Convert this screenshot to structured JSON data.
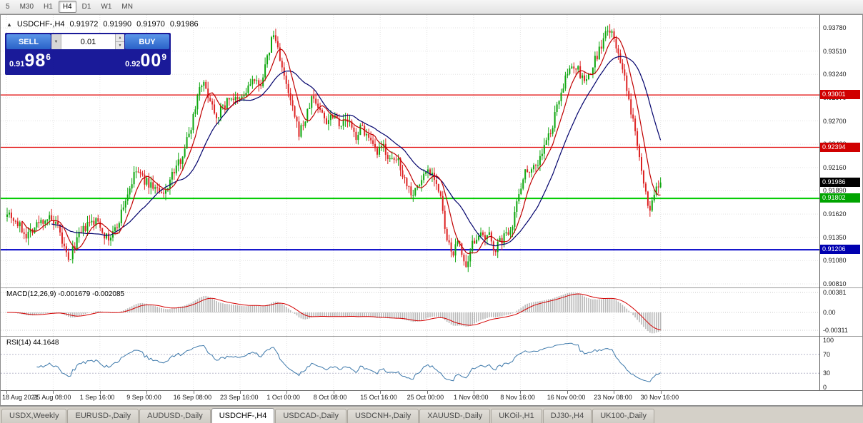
{
  "toolbar": {
    "periods": [
      "5",
      "M30",
      "H1",
      "H4",
      "D1",
      "W1",
      "MN"
    ],
    "active_period": "H4"
  },
  "chart": {
    "collapse_icon": "▲",
    "title": "USDCHF-,H4",
    "open": "0.91972",
    "high": "0.91990",
    "low": "0.91970",
    "close": "0.91986"
  },
  "trade_panel": {
    "sell_label": "SELL",
    "buy_label": "BUY",
    "lot_size": "0.01",
    "dropdown_icon": "▼",
    "spin_up_icon": "▲",
    "spin_down_icon": "▼",
    "sell_price": {
      "prefix": "0.91",
      "big": "98",
      "sup": "6"
    },
    "buy_price": {
      "prefix": "0.92",
      "big": "00",
      "sup": "9"
    }
  },
  "price_axis": {
    "labels": [
      "0.93780",
      "0.93510",
      "0.93240",
      "0.92970",
      "0.92700",
      "0.92430",
      "0.92160",
      "0.91890",
      "0.91620",
      "0.91350",
      "0.91080",
      "0.90810"
    ],
    "markers": [
      {
        "value": "0.93001",
        "price": 0.93001,
        "color": "#d00000"
      },
      {
        "value": "0.92394",
        "price": 0.92394,
        "color": "#d00000"
      },
      {
        "value": "0.91986",
        "price": 0.91986,
        "color": "#000000"
      },
      {
        "value": "0.91802",
        "price": 0.91802,
        "color": "#00a400"
      },
      {
        "value": "0.91206",
        "price": 0.91206,
        "color": "#0000b0"
      }
    ]
  },
  "levels": [
    {
      "price": 0.93001,
      "color": "#e00000",
      "width": 1.3
    },
    {
      "price": 0.92394,
      "color": "#e00000",
      "width": 1.3
    },
    {
      "price": 0.91802,
      "color": "#00cc00",
      "width": 2
    },
    {
      "price": 0.91206,
      "color": "#0000c8",
      "width": 2
    }
  ],
  "macd": {
    "title": "MACD(12,26,9) -0.001679 -0.002085",
    "axis": [
      "0.00381",
      "0.00",
      "-0.00311"
    ]
  },
  "rsi": {
    "title": "RSI(14) 44.1648",
    "axis": [
      "100",
      "70",
      "30",
      "0"
    ]
  },
  "time_axis": {
    "labels": [
      "18 Aug 2021",
      "25 Aug 08:00",
      "1 Sep 16:00",
      "9 Sep 00:00",
      "16 Sep 08:00",
      "23 Sep 16:00",
      "1 Oct 00:00",
      "8 Oct 08:00",
      "15 Oct 16:00",
      "25 Oct 00:00",
      "1 Nov 08:00",
      "8 Nov 16:00",
      "16 Nov 00:00",
      "23 Nov 08:00",
      "30 Nov 16:00"
    ]
  },
  "tabs": {
    "items": [
      "USDX,Weekly",
      "EURUSD-,Daily",
      "AUDUSD-,Daily",
      "USDCHF-,H4",
      "USDCAD-,Daily",
      "USDCNH-,Daily",
      "XAUUSD-,Daily",
      "UKOil-,H1",
      "DJ30-,H4",
      "UK100-,Daily"
    ],
    "active": "USDCHF-,H4"
  },
  "colors": {
    "up": "#0da60d",
    "down": "#dd2222",
    "ma_fast": "#c00000",
    "ma_slow": "#00006b",
    "grid": "#e3e3e3",
    "macd_hist": "#b8b8b8",
    "macd_signal": "#d40000",
    "rsi_line": "#3c78aa"
  },
  "chart_data": {
    "type": "candlestick",
    "symbol": "USDCHF-",
    "timeframe": "H4",
    "title": "USDCHF-,H4",
    "ylim": [
      0.9081,
      0.9378
    ],
    "y_ticks": [
      0.9378,
      0.9351,
      0.9324,
      0.9297,
      0.927,
      0.9243,
      0.9216,
      0.9189,
      0.9162,
      0.9135,
      0.9108,
      0.9081
    ],
    "last": {
      "open": 0.91972,
      "high": 0.9199,
      "low": 0.9197,
      "close": 0.91986
    },
    "bid": 0.91986,
    "ask": 0.92009,
    "horizontal_levels": [
      0.93001,
      0.92394,
      0.91802,
      0.91206
    ],
    "indicators": [
      {
        "name": "MACD",
        "params": [
          12,
          26,
          9
        ],
        "current": [
          -0.001679,
          -0.002085
        ],
        "axis_range": [
          -0.00311,
          0.00381
        ]
      },
      {
        "name": "RSI",
        "params": [
          14
        ],
        "current": 44.1648,
        "axis_range": [
          0,
          100
        ]
      }
    ],
    "x_unit": "px",
    "price_path": [
      [
        8,
        0.9168
      ],
      [
        22,
        0.9152
      ],
      [
        36,
        0.9138
      ],
      [
        52,
        0.9151
      ],
      [
        66,
        0.9158
      ],
      [
        80,
        0.9145
      ],
      [
        95,
        0.9106
      ],
      [
        106,
        0.9132
      ],
      [
        122,
        0.915
      ],
      [
        136,
        0.9154
      ],
      [
        150,
        0.9131
      ],
      [
        162,
        0.9146
      ],
      [
        176,
        0.9182
      ],
      [
        190,
        0.9213
      ],
      [
        202,
        0.92
      ],
      [
        216,
        0.9193
      ],
      [
        227,
        0.9181
      ],
      [
        238,
        0.9204
      ],
      [
        252,
        0.9226
      ],
      [
        266,
        0.9262
      ],
      [
        280,
        0.9318
      ],
      [
        292,
        0.9298
      ],
      [
        302,
        0.9276
      ],
      [
        312,
        0.9287
      ],
      [
        322,
        0.9299
      ],
      [
        332,
        0.9291
      ],
      [
        342,
        0.9301
      ],
      [
        352,
        0.9318
      ],
      [
        362,
        0.9309
      ],
      [
        372,
        0.9337
      ],
      [
        381,
        0.9372
      ],
      [
        389,
        0.9352
      ],
      [
        397,
        0.9318
      ],
      [
        407,
        0.9288
      ],
      [
        417,
        0.9256
      ],
      [
        427,
        0.9272
      ],
      [
        436,
        0.9299
      ],
      [
        446,
        0.9284
      ],
      [
        456,
        0.927
      ],
      [
        466,
        0.928
      ],
      [
        476,
        0.9266
      ],
      [
        486,
        0.9271
      ],
      [
        496,
        0.9251
      ],
      [
        506,
        0.9264
      ],
      [
        516,
        0.9246
      ],
      [
        526,
        0.9231
      ],
      [
        536,
        0.9241
      ],
      [
        546,
        0.9221
      ],
      [
        556,
        0.9226
      ],
      [
        566,
        0.9201
      ],
      [
        576,
        0.9186
      ],
      [
        586,
        0.9196
      ],
      [
        596,
        0.9214
      ],
      [
        606,
        0.9209
      ],
      [
        616,
        0.9179
      ],
      [
        624,
        0.9131
      ],
      [
        632,
        0.9116
      ],
      [
        642,
        0.9131
      ],
      [
        652,
        0.9093
      ],
      [
        660,
        0.9126
      ],
      [
        668,
        0.9141
      ],
      [
        676,
        0.9131
      ],
      [
        684,
        0.9136
      ],
      [
        692,
        0.9121
      ],
      [
        700,
        0.9131
      ],
      [
        708,
        0.9139
      ],
      [
        716,
        0.9151
      ],
      [
        724,
        0.9181
      ],
      [
        732,
        0.9209
      ],
      [
        742,
        0.9216
      ],
      [
        752,
        0.9221
      ],
      [
        762,
        0.9243
      ],
      [
        772,
        0.9262
      ],
      [
        782,
        0.9299
      ],
      [
        792,
        0.9321
      ],
      [
        800,
        0.9336
      ],
      [
        808,
        0.9329
      ],
      [
        816,
        0.9316
      ],
      [
        824,
        0.9321
      ],
      [
        832,
        0.9341
      ],
      [
        840,
        0.9356
      ],
      [
        848,
        0.9372
      ],
      [
        853,
        0.9377
      ],
      [
        859,
        0.9359
      ],
      [
        865,
        0.9349
      ],
      [
        871,
        0.9329
      ],
      [
        877,
        0.9299
      ],
      [
        883,
        0.9277
      ],
      [
        889,
        0.9257
      ],
      [
        895,
        0.9227
      ],
      [
        901,
        0.9196
      ],
      [
        907,
        0.9163
      ],
      [
        913,
        0.9181
      ],
      [
        919,
        0.9191
      ],
      [
        925,
        0.9196
      ],
      [
        928,
        0.91986
      ]
    ]
  }
}
